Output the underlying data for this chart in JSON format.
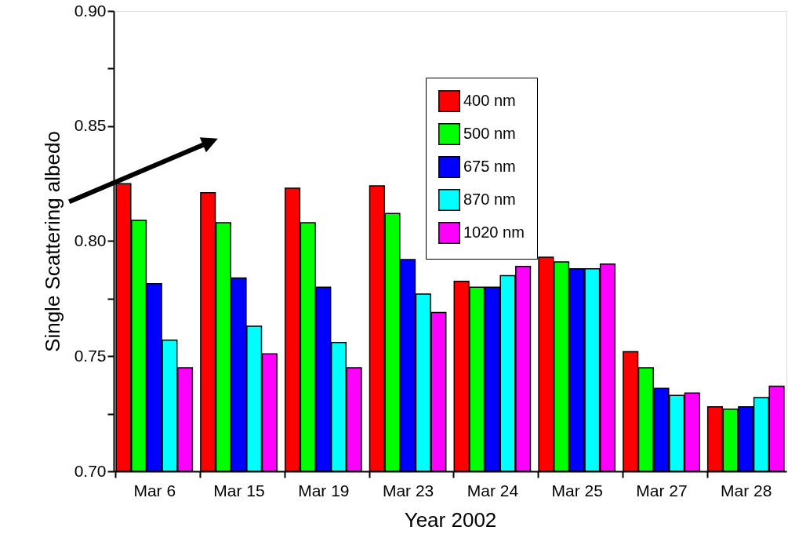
{
  "chart_data": {
    "type": "bar",
    "xlabel": "Year 2002",
    "ylabel": "Single Scattering albedo",
    "categories": [
      "Mar 6",
      "Mar 15",
      "Mar 19",
      "Mar 23",
      "Mar 24",
      "Mar 25",
      "Mar 27",
      "Mar 28"
    ],
    "series": [
      {
        "name": "400 nm",
        "color": "#ff0000",
        "values": [
          0.825,
          0.821,
          0.823,
          0.824,
          0.7825,
          0.793,
          0.752,
          0.728
        ]
      },
      {
        "name": "500 nm",
        "color": "#00ff00",
        "values": [
          0.809,
          0.808,
          0.808,
          0.812,
          0.78,
          0.791,
          0.745,
          0.727
        ]
      },
      {
        "name": "675 nm",
        "color": "#0000ff",
        "values": [
          0.7815,
          0.784,
          0.78,
          0.792,
          0.78,
          0.788,
          0.736,
          0.728
        ]
      },
      {
        "name": "870 nm",
        "color": "#00ffff",
        "values": [
          0.757,
          0.763,
          0.756,
          0.777,
          0.785,
          0.788,
          0.733,
          0.732
        ]
      },
      {
        "name": "1020 nm",
        "color": "#ff00ff",
        "values": [
          0.745,
          0.751,
          0.745,
          0.769,
          0.789,
          0.79,
          0.734,
          0.737
        ]
      }
    ],
    "ylim": [
      0.7,
      0.9
    ],
    "yticks": [
      {
        "value": 0.7,
        "label": "0.70"
      },
      {
        "value": 0.725,
        "label": null
      },
      {
        "value": 0.75,
        "label": "0.75"
      },
      {
        "value": 0.775,
        "label": null
      },
      {
        "value": 0.8,
        "label": "0.80"
      },
      {
        "value": 0.825,
        "label": null
      },
      {
        "value": 0.85,
        "label": "0.85"
      },
      {
        "value": 0.875,
        "label": null
      },
      {
        "value": 0.9,
        "label": "0.90"
      }
    ],
    "grid": false,
    "legend": "top right"
  }
}
